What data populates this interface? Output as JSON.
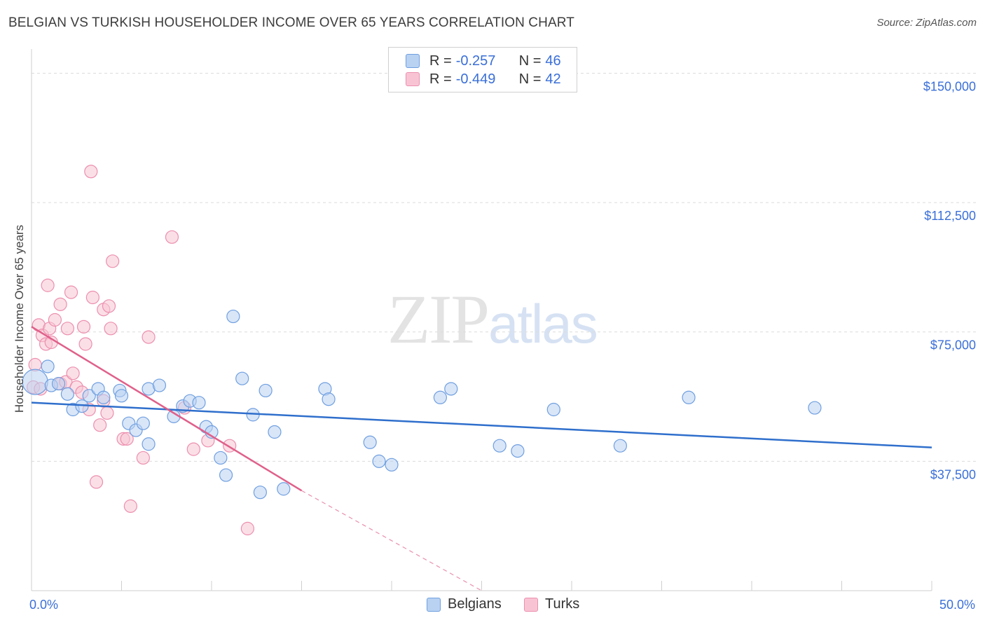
{
  "header": {
    "title": "BELGIAN VS TURKISH HOUSEHOLDER INCOME OVER 65 YEARS CORRELATION CHART",
    "source": "Source: ZipAtlas.com"
  },
  "watermark": {
    "zip": "ZIP",
    "atlas": "atlas"
  },
  "legend": {
    "rows": [
      {
        "r_label": "R =",
        "r_value": "-0.257",
        "n_label": "N =",
        "n_value": "46"
      },
      {
        "r_label": "R =",
        "r_value": "-0.449",
        "n_label": "N =",
        "n_value": "42"
      }
    ]
  },
  "colors": {
    "belgians_fill": "#b9d2f2",
    "belgians_stroke": "#6f9fe0",
    "belgians_line": "#2f6fcc",
    "turks_fill": "#f8c4d4",
    "turks_stroke": "#ec8fae",
    "turks_line": "#e0608a",
    "axis_text": "#3a6fd8",
    "grid": "#dcdcdc"
  },
  "chart_data": {
    "type": "scatter",
    "title": "BELGIAN VS TURKISH HOUSEHOLDER INCOME OVER 65 YEARS CORRELATION CHART",
    "xlabel": "",
    "ylabel": "Householder Income Over 65 years",
    "xlim": [
      0,
      50
    ],
    "ylim": [
      0,
      157000
    ],
    "x_tick_labels": [
      "0.0%",
      "50.0%"
    ],
    "y_ticks": [
      37500,
      75000,
      112500,
      150000
    ],
    "y_tick_labels": [
      "$37,500",
      "$75,000",
      "$112,500",
      "$150,000"
    ],
    "legend_position": "top-center",
    "series": [
      {
        "name": "Belgians",
        "r": -0.257,
        "n": 46,
        "points": [
          [
            0.2,
            60500
          ],
          [
            0.9,
            65000
          ],
          [
            1.1,
            59500
          ],
          [
            1.5,
            60000
          ],
          [
            2.0,
            57000
          ],
          [
            2.3,
            52500
          ],
          [
            2.8,
            53500
          ],
          [
            3.2,
            56500
          ],
          [
            3.7,
            58500
          ],
          [
            4.0,
            56000
          ],
          [
            4.9,
            58000
          ],
          [
            5.0,
            56500
          ],
          [
            5.4,
            48500
          ],
          [
            5.8,
            46500
          ],
          [
            6.2,
            48500
          ],
          [
            6.5,
            42500
          ],
          [
            6.5,
            58500
          ],
          [
            7.1,
            59500
          ],
          [
            7.9,
            50500
          ],
          [
            8.4,
            53500
          ],
          [
            8.8,
            55000
          ],
          [
            9.3,
            54500
          ],
          [
            9.7,
            47500
          ],
          [
            10.0,
            46000
          ],
          [
            10.5,
            38500
          ],
          [
            10.8,
            33500
          ],
          [
            11.2,
            79500
          ],
          [
            11.7,
            61500
          ],
          [
            12.3,
            51000
          ],
          [
            12.7,
            28500
          ],
          [
            13.0,
            58000
          ],
          [
            13.5,
            46000
          ],
          [
            14.0,
            29500
          ],
          [
            16.3,
            58500
          ],
          [
            16.5,
            55500
          ],
          [
            18.8,
            43000
          ],
          [
            19.3,
            37500
          ],
          [
            20.0,
            36500
          ],
          [
            22.7,
            56000
          ],
          [
            23.3,
            58500
          ],
          [
            26.0,
            42000
          ],
          [
            27.0,
            40500
          ],
          [
            29.0,
            52500
          ],
          [
            32.7,
            42000
          ],
          [
            36.5,
            56000
          ],
          [
            43.5,
            53000
          ]
        ],
        "trend": {
          "x": [
            0,
            50
          ],
          "y": [
            54500,
            41500
          ]
        }
      },
      {
        "name": "Turks",
        "r": -0.449,
        "n": 42,
        "points": [
          [
            0.1,
            59000
          ],
          [
            0.2,
            65500
          ],
          [
            0.4,
            77000
          ],
          [
            0.6,
            74000
          ],
          [
            0.8,
            71500
          ],
          [
            0.9,
            88500
          ],
          [
            1.0,
            76000
          ],
          [
            1.1,
            72000
          ],
          [
            1.3,
            78500
          ],
          [
            1.6,
            60000
          ],
          [
            1.6,
            83000
          ],
          [
            1.9,
            60500
          ],
          [
            2.0,
            76000
          ],
          [
            2.2,
            86500
          ],
          [
            2.3,
            63000
          ],
          [
            2.5,
            59000
          ],
          [
            2.8,
            57500
          ],
          [
            2.9,
            76500
          ],
          [
            3.0,
            71500
          ],
          [
            3.2,
            52500
          ],
          [
            3.3,
            121500
          ],
          [
            3.4,
            85000
          ],
          [
            3.6,
            31500
          ],
          [
            3.8,
            48000
          ],
          [
            4.0,
            55000
          ],
          [
            4.0,
            81500
          ],
          [
            4.2,
            51500
          ],
          [
            4.3,
            82500
          ],
          [
            4.4,
            76000
          ],
          [
            4.5,
            95500
          ],
          [
            5.1,
            44000
          ],
          [
            5.3,
            44000
          ],
          [
            5.5,
            24500
          ],
          [
            6.2,
            38500
          ],
          [
            6.5,
            73500
          ],
          [
            7.8,
            102500
          ],
          [
            8.5,
            53000
          ],
          [
            9.0,
            41000
          ],
          [
            9.8,
            43500
          ],
          [
            11.0,
            42000
          ],
          [
            12.0,
            18000
          ],
          [
            0.5,
            58500
          ]
        ],
        "trend": {
          "x": [
            0,
            15
          ],
          "y": [
            76500,
            29000
          ]
        },
        "trend_extrapolated": {
          "x": [
            15,
            25
          ],
          "y": [
            29000,
            -2800
          ]
        }
      }
    ]
  },
  "bottom_legend": {
    "items": [
      {
        "label": "Belgians"
      },
      {
        "label": "Turks"
      }
    ]
  },
  "x_axis": {
    "left_label": "0.0%",
    "right_label": "50.0%"
  }
}
